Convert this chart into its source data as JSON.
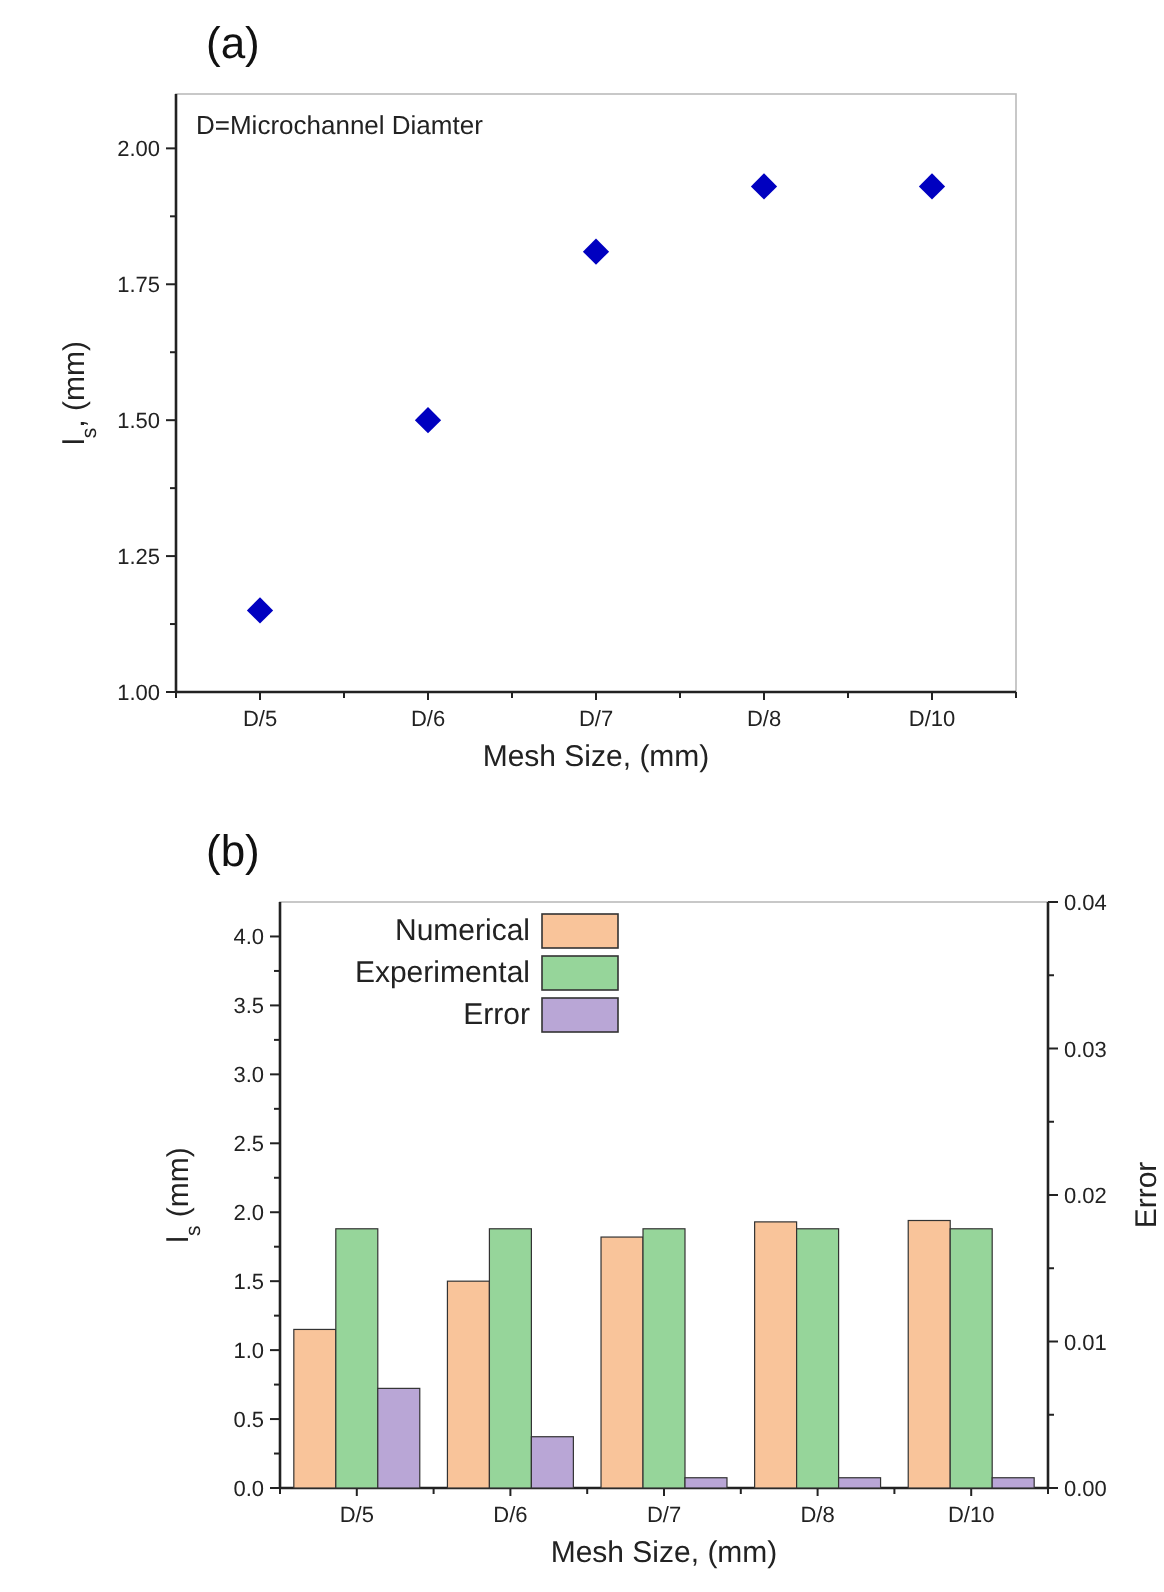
{
  "chart_data": [
    {
      "type": "scatter",
      "title": "(a)",
      "xlabel": "Mesh Size, (mm)",
      "ylabel": "l$_{s}$, (mm)",
      "categories": [
        "D/5",
        "D/6",
        "D/7",
        "D/8",
        "D/10"
      ],
      "series": [
        {
          "color": "#0000c0",
          "values": [
            1.15,
            1.5,
            1.81,
            1.93,
            1.93
          ]
        }
      ],
      "ylim": [
        1.0,
        2.1
      ],
      "yticks": [
        {
          "value": 1.0,
          "label": "1.00"
        },
        1.25,
        {
          "value": 1.5,
          "label": "1.50"
        },
        1.75,
        {
          "value": 2.0,
          "label": "2.00"
        }
      ],
      "marker": "diamond",
      "grid": false,
      "legend": false,
      "annotations": [
        "D=Microchannel Diamter"
      ]
    },
    {
      "type": "bar",
      "title": "(b)",
      "xlabel": "Mesh Size, (mm)",
      "ylabel": "l$_{s}$ (mm)",
      "y2label": "Error",
      "categories": [
        "D/5",
        "D/6",
        "D/7",
        "D/8",
        "D/10"
      ],
      "series": [
        {
          "name": "Numerical",
          "color": "#f9c49a",
          "values": [
            1.15,
            1.5,
            1.82,
            1.93,
            1.94
          ]
        },
        {
          "name": "Experimental",
          "color": "#96d59a",
          "values": [
            1.88,
            1.88,
            1.88,
            1.88,
            1.88
          ]
        },
        {
          "name": "Error",
          "color": "#b9a6d6",
          "axis": "y2",
          "values": [
            0.0068,
            0.0035,
            0.0007,
            0.0007,
            0.0007
          ]
        }
      ],
      "ylim": [
        0,
        4.25
      ],
      "yticks": [
        {
          "value": 0,
          "label": "0.0"
        },
        0.5,
        {
          "value": 1,
          "label": "1.0"
        },
        1.5,
        {
          "value": 2,
          "label": "2.0"
        },
        2.5,
        {
          "value": 3,
          "label": "3.0"
        },
        3.5,
        {
          "value": 4,
          "label": "4.0"
        }
      ],
      "y2lim": [
        0,
        0.04
      ],
      "y2ticks": [
        {
          "value": 0,
          "label": "0.00"
        },
        0.01,
        0.02,
        0.03,
        0.04
      ],
      "grid": false,
      "legend": "top left"
    }
  ]
}
